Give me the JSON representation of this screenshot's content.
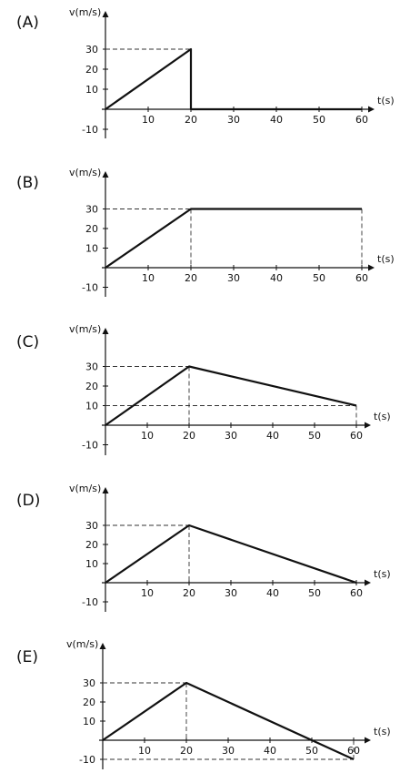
{
  "chart_data": [
    {
      "label": "(A)",
      "type": "line",
      "ylabel": "v(m/s)",
      "xlabel": "t(s)",
      "x_ticks": [
        10,
        20,
        30,
        40,
        50,
        60
      ],
      "y_ticks": [
        30,
        20,
        10,
        -10
      ],
      "series": [
        {
          "x": [
            0,
            20,
            20,
            60
          ],
          "y": [
            0,
            30,
            0,
            0
          ]
        }
      ],
      "guides": [
        {
          "from": [
            0,
            30
          ],
          "to": [
            20,
            30
          ]
        },
        {
          "from": [
            20,
            30
          ],
          "to": [
            20,
            0
          ]
        }
      ]
    },
    {
      "label": "(B)",
      "type": "line",
      "ylabel": "v(m/s)",
      "xlabel": "t(s)",
      "x_ticks": [
        10,
        20,
        30,
        40,
        50,
        60
      ],
      "y_ticks": [
        30,
        20,
        10,
        -10
      ],
      "series": [
        {
          "x": [
            0,
            20,
            60
          ],
          "y": [
            0,
            30,
            30
          ]
        }
      ],
      "guides": [
        {
          "from": [
            0,
            30
          ],
          "to": [
            20,
            30
          ]
        },
        {
          "from": [
            20,
            30
          ],
          "to": [
            20,
            0
          ]
        },
        {
          "from": [
            60,
            30
          ],
          "to": [
            60,
            0
          ]
        }
      ]
    },
    {
      "label": "(C)",
      "type": "line",
      "ylabel": "v(m/s)",
      "xlabel": "t(s)",
      "x_ticks": [
        10,
        20,
        30,
        40,
        50,
        60
      ],
      "y_ticks": [
        30,
        20,
        10,
        -10
      ],
      "series": [
        {
          "x": [
            0,
            20,
            60
          ],
          "y": [
            0,
            30,
            10
          ]
        }
      ],
      "guides": [
        {
          "from": [
            0,
            30
          ],
          "to": [
            20,
            30
          ]
        },
        {
          "from": [
            20,
            30
          ],
          "to": [
            20,
            0
          ]
        },
        {
          "from": [
            0,
            10
          ],
          "to": [
            60,
            10
          ]
        },
        {
          "from": [
            60,
            10
          ],
          "to": [
            60,
            0
          ]
        }
      ]
    },
    {
      "label": "(D)",
      "type": "line",
      "ylabel": "v(m/s)",
      "xlabel": "t(s)",
      "x_ticks": [
        10,
        20,
        30,
        40,
        50,
        60
      ],
      "y_ticks": [
        30,
        20,
        10,
        -10
      ],
      "series": [
        {
          "x": [
            0,
            20,
            60
          ],
          "y": [
            0,
            30,
            0
          ]
        }
      ],
      "guides": [
        {
          "from": [
            0,
            30
          ],
          "to": [
            20,
            30
          ]
        },
        {
          "from": [
            20,
            30
          ],
          "to": [
            20,
            0
          ]
        }
      ]
    },
    {
      "label": "(E)",
      "type": "line",
      "ylabel": "v(m/s)",
      "xlabel": "t(s)",
      "x_ticks": [
        10,
        20,
        30,
        40,
        50,
        60
      ],
      "y_ticks": [
        30,
        20,
        10,
        -10
      ],
      "series": [
        {
          "x": [
            0,
            20,
            60
          ],
          "y": [
            0,
            30,
            -10
          ]
        }
      ],
      "guides": [
        {
          "from": [
            0,
            30
          ],
          "to": [
            20,
            30
          ]
        },
        {
          "from": [
            20,
            30
          ],
          "to": [
            20,
            0
          ]
        },
        {
          "from": [
            0,
            -10
          ],
          "to": [
            60,
            -10
          ]
        },
        {
          "from": [
            60,
            -10
          ],
          "to": [
            60,
            0
          ]
        }
      ]
    }
  ]
}
